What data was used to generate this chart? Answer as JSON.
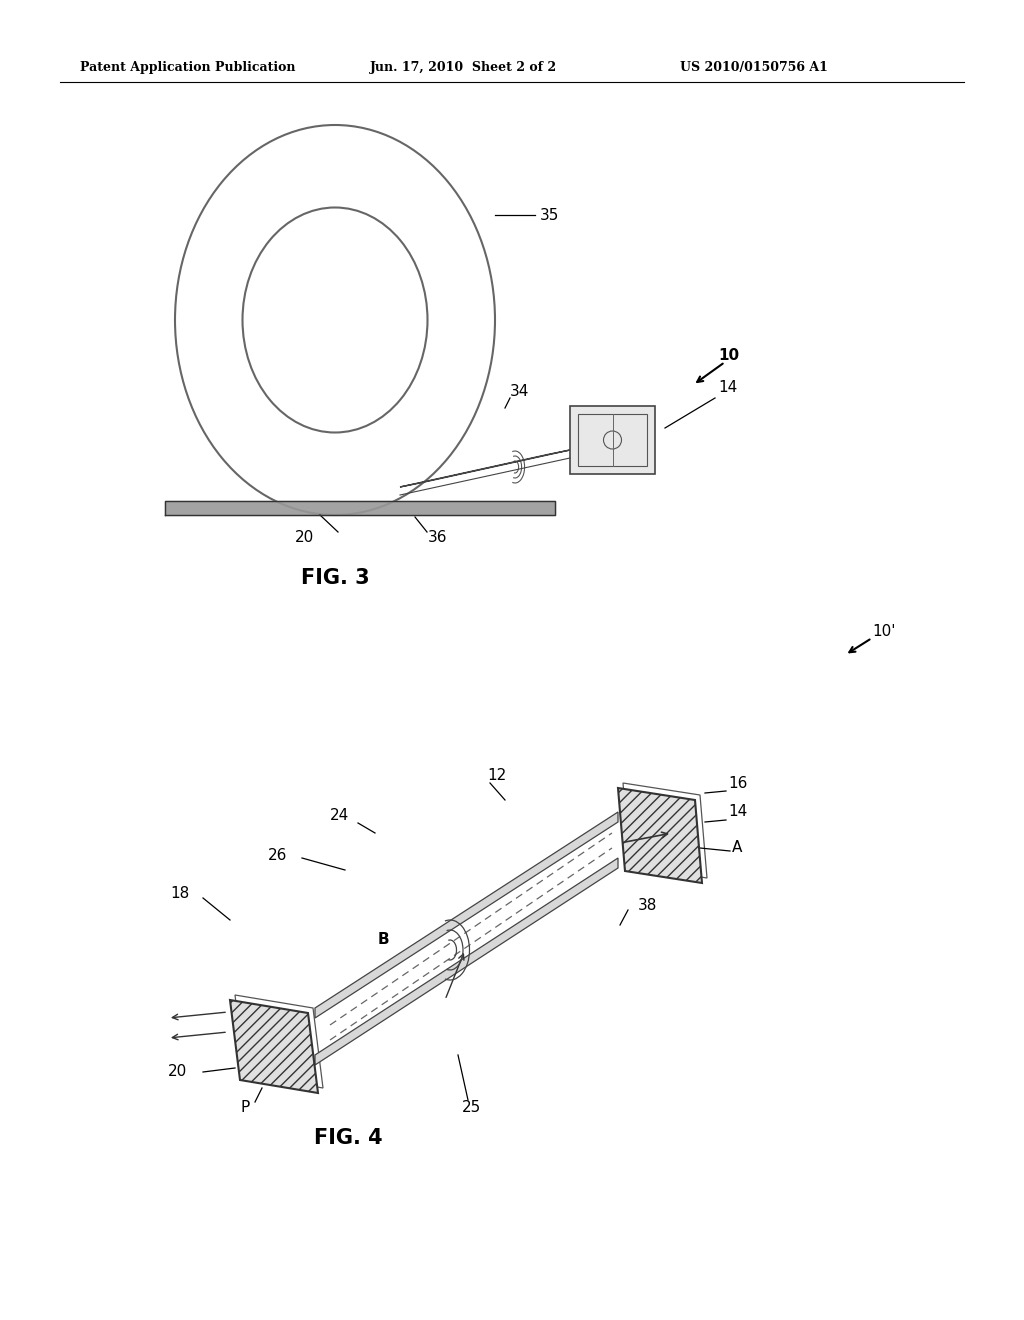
{
  "bg_color": "#ffffff",
  "header_left": "Patent Application Publication",
  "header_mid": "Jun. 17, 2010  Sheet 2 of 2",
  "header_right": "US 2010/0150756 A1",
  "fig3_label": "FIG. 3",
  "fig4_label": "FIG. 4",
  "fig3_ref10": "10",
  "fig3_ref14": "14",
  "fig3_ref20": "20",
  "fig3_ref34": "34",
  "fig3_ref35": "35",
  "fig3_ref36": "36",
  "fig4_ref10p": "10'",
  "fig4_ref12": "12",
  "fig4_ref14": "14",
  "fig4_ref16": "16",
  "fig4_ref18": "18",
  "fig4_ref20": "20",
  "fig4_ref24": "24",
  "fig4_ref25": "25",
  "fig4_ref26": "26",
  "fig4_refA": "A",
  "fig4_refB": "B",
  "fig4_ref38": "38",
  "fig4_refP": "P"
}
